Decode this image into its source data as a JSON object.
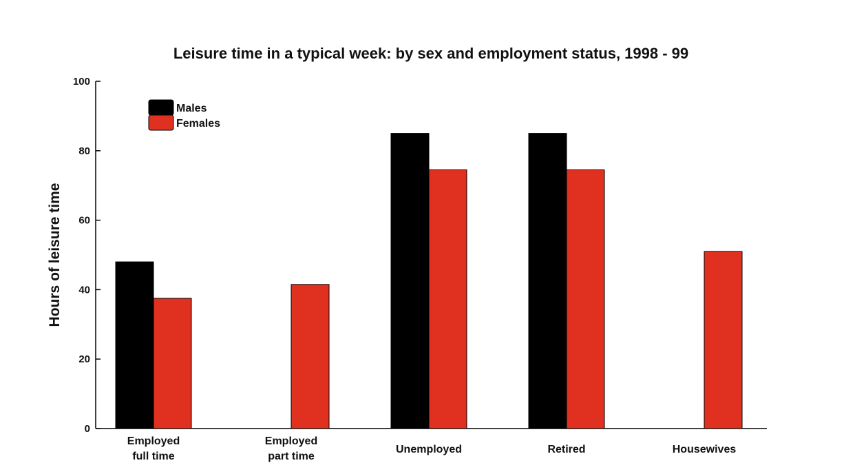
{
  "chart_data": {
    "type": "bar",
    "title": "Leisure time in a typical week: by sex and employment status, 1998 - 99",
    "xlabel": "",
    "ylabel": "Hours of leisure time",
    "ylim": [
      0,
      100
    ],
    "yticks": [
      0,
      20,
      40,
      60,
      80,
      100
    ],
    "categories": [
      [
        "Employed",
        "full time"
      ],
      [
        "Employed",
        "part time"
      ],
      [
        "Unemployed"
      ],
      [
        "Retired"
      ],
      [
        "Housewives"
      ]
    ],
    "series": [
      {
        "name": "Males",
        "color": "#000000",
        "values": [
          48,
          null,
          85,
          85,
          null
        ]
      },
      {
        "name": "Females",
        "color": "#e03020",
        "values": [
          37.5,
          41.5,
          74.5,
          74.5,
          51
        ]
      }
    ],
    "legend_position": "top-left",
    "grid": false
  }
}
